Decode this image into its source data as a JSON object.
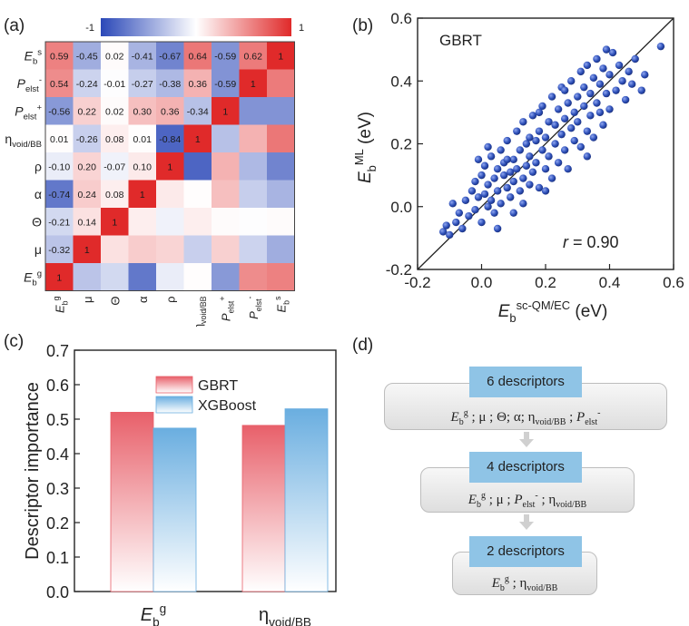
{
  "panels": {
    "a": "(a)",
    "b": "(b)",
    "c": "(c)",
    "d": "(d)"
  },
  "chart_data": [
    {
      "type": "heatmap",
      "colorbar": {
        "min_label": "-1",
        "max_label": "1",
        "min": -1,
        "max": 1,
        "colors": {
          "neg": "#2b48b8",
          "mid": "#ffffff",
          "pos": "#e02a2a"
        }
      },
      "rows": [
        "Eb^s",
        "P_elst^-",
        "P_elst^+",
        "η_void/BB",
        "ρ",
        "α",
        "Θ",
        "μ",
        "Eb^g"
      ],
      "cols": [
        "Eb^g",
        "μ",
        "Θ",
        "α",
        "ρ",
        "η_void/BB",
        "P_elst^+",
        "P_elst^-",
        "Eb^s"
      ],
      "matrix": [
        [
          0.59,
          -0.45,
          0.02,
          -0.41,
          -0.67,
          0.64,
          -0.59,
          0.62,
          1
        ],
        [
          0.54,
          -0.24,
          -0.01,
          -0.27,
          -0.38,
          0.36,
          -0.59,
          1,
          0.62
        ],
        [
          -0.56,
          0.22,
          0.02,
          0.3,
          0.36,
          -0.34,
          1,
          -0.59,
          -0.59
        ],
        [
          0.01,
          -0.26,
          0.08,
          0.01,
          -0.84,
          1,
          -0.34,
          0.36,
          0.64
        ],
        [
          -0.1,
          0.2,
          -0.07,
          0.1,
          1,
          -0.84,
          0.36,
          -0.38,
          -0.67
        ],
        [
          -0.74,
          0.24,
          0.08,
          1,
          0.1,
          0.01,
          0.3,
          -0.27,
          -0.41
        ],
        [
          -0.21,
          0.14,
          1,
          0.08,
          -0.07,
          0.08,
          0.02,
          -0.01,
          0.02
        ],
        [
          -0.32,
          1,
          0.14,
          0.24,
          0.2,
          -0.26,
          0.22,
          -0.24,
          -0.45
        ],
        [
          1,
          -0.32,
          -0.21,
          -0.74,
          -0.1,
          0.01,
          -0.56,
          0.54,
          0.59
        ]
      ],
      "labels": [
        "0.59",
        "-0.45",
        "0.02",
        "-0.41",
        "-0.67",
        "0.64",
        "-0.59",
        "0.62",
        "1",
        "0.54",
        "-0.24",
        "-0.01",
        "-0.27",
        "-0.38",
        "0.36",
        "-0.59",
        "1",
        "-0.56",
        "0.22",
        "0.02",
        "0.30",
        "0.36",
        "-0.34",
        "1",
        "0.01",
        "-0.26",
        "0.08",
        "0.01",
        "-0.84",
        "1",
        "-0.10",
        "0.20",
        "-0.07",
        "0.10",
        "1",
        "-0.74",
        "0.24",
        "0.08",
        "1",
        "-0.21",
        "0.14",
        "1",
        "-0.32",
        "1",
        "1"
      ]
    },
    {
      "type": "scatter",
      "title": "GBRT",
      "xlabel": "E_b^sc-QM/EC (eV)",
      "ylabel": "E_b^ML (eV)",
      "xlim": [
        -0.2,
        0.6
      ],
      "ylim": [
        -0.2,
        0.6
      ],
      "xticks": [
        "-0.2",
        "0.0",
        "0.2",
        "0.4",
        "0.6"
      ],
      "yticks": [
        "-0.2",
        "0.0",
        "0.2",
        "0.4",
        "0.6"
      ],
      "annotation": "r = 0.90",
      "point_color": "#2d4fb8",
      "points": [
        [
          -0.12,
          -0.08
        ],
        [
          -0.11,
          -0.06
        ],
        [
          -0.1,
          -0.09
        ],
        [
          -0.08,
          -0.05
        ],
        [
          -0.09,
          0.01
        ],
        [
          -0.07,
          -0.02
        ],
        [
          -0.06,
          -0.07
        ],
        [
          -0.05,
          0.02
        ],
        [
          -0.04,
          -0.03
        ],
        [
          -0.03,
          0.05
        ],
        [
          -0.02,
          -0.01
        ],
        [
          -0.02,
          0.08
        ],
        [
          -0.01,
          0.03
        ],
        [
          0.0,
          -0.05
        ],
        [
          0.0,
          0.1
        ],
        [
          0.01,
          0.04
        ],
        [
          0.01,
          0.13
        ],
        [
          0.02,
          0.0
        ],
        [
          0.02,
          0.07
        ],
        [
          0.03,
          0.16
        ],
        [
          0.03,
          0.02
        ],
        [
          0.04,
          0.09
        ],
        [
          0.04,
          -0.02
        ],
        [
          0.05,
          0.12
        ],
        [
          0.05,
          0.05
        ],
        [
          0.06,
          0.18
        ],
        [
          0.06,
          0.01
        ],
        [
          0.07,
          0.1
        ],
        [
          0.07,
          0.14
        ],
        [
          0.08,
          0.06
        ],
        [
          0.08,
          0.21
        ],
        [
          0.09,
          0.11
        ],
        [
          0.09,
          0.03
        ],
        [
          0.1,
          0.15
        ],
        [
          0.1,
          0.08
        ],
        [
          0.11,
          0.24
        ],
        [
          0.11,
          0.12
        ],
        [
          0.12,
          0.05
        ],
        [
          0.12,
          0.18
        ],
        [
          0.13,
          0.09
        ],
        [
          0.13,
          0.27
        ],
        [
          0.14,
          0.13
        ],
        [
          0.14,
          0.2
        ],
        [
          0.15,
          0.07
        ],
        [
          0.15,
          0.16
        ],
        [
          0.16,
          0.29
        ],
        [
          0.16,
          0.11
        ],
        [
          0.17,
          0.21
        ],
        [
          0.17,
          0.14
        ],
        [
          0.18,
          0.24
        ],
        [
          0.18,
          0.06
        ],
        [
          0.19,
          0.18
        ],
        [
          0.19,
          0.32
        ],
        [
          0.2,
          0.12
        ],
        [
          0.2,
          0.22
        ],
        [
          0.21,
          0.27
        ],
        [
          0.21,
          0.16
        ],
        [
          0.22,
          0.35
        ],
        [
          0.22,
          0.09
        ],
        [
          0.23,
          0.2
        ],
        [
          0.23,
          0.26
        ],
        [
          0.24,
          0.14
        ],
        [
          0.24,
          0.31
        ],
        [
          0.25,
          0.23
        ],
        [
          0.25,
          0.38
        ],
        [
          0.26,
          0.18
        ],
        [
          0.26,
          0.28
        ],
        [
          0.27,
          0.33
        ],
        [
          0.27,
          0.12
        ],
        [
          0.28,
          0.25
        ],
        [
          0.28,
          0.4
        ],
        [
          0.29,
          0.3
        ],
        [
          0.29,
          0.21
        ],
        [
          0.3,
          0.35
        ],
        [
          0.3,
          0.27
        ],
        [
          0.31,
          0.43
        ],
        [
          0.31,
          0.19
        ],
        [
          0.32,
          0.32
        ],
        [
          0.32,
          0.38
        ],
        [
          0.33,
          0.24
        ],
        [
          0.33,
          0.45
        ],
        [
          0.34,
          0.29
        ],
        [
          0.34,
          0.36
        ],
        [
          0.35,
          0.41
        ],
        [
          0.35,
          0.22
        ],
        [
          0.36,
          0.33
        ],
        [
          0.36,
          0.47
        ],
        [
          0.37,
          0.3
        ],
        [
          0.37,
          0.39
        ],
        [
          0.38,
          0.44
        ],
        [
          0.38,
          0.26
        ],
        [
          0.39,
          0.36
        ],
        [
          0.4,
          0.42
        ],
        [
          0.4,
          0.31
        ],
        [
          0.41,
          0.49
        ],
        [
          0.42,
          0.37
        ],
        [
          0.43,
          0.45
        ],
        [
          0.44,
          0.4
        ],
        [
          0.45,
          0.34
        ],
        [
          0.46,
          0.43
        ],
        [
          0.47,
          0.39
        ],
        [
          0.48,
          0.47
        ],
        [
          0.5,
          0.37
        ],
        [
          0.51,
          0.42
        ],
        [
          0.56,
          0.51
        ],
        [
          -0.01,
          0.15
        ],
        [
          0.05,
          -0.07
        ],
        [
          0.08,
          0.15
        ],
        [
          0.13,
          0.01
        ],
        [
          0.18,
          0.3
        ],
        [
          0.02,
          0.19
        ],
        [
          0.1,
          -0.02
        ],
        [
          0.15,
          0.22
        ],
        [
          0.2,
          0.05
        ],
        [
          0.26,
          0.37
        ],
        [
          0.33,
          0.16
        ],
        [
          0.39,
          0.5
        ]
      ]
    },
    {
      "type": "bar",
      "categories": [
        "E_b^g",
        "η_void/BB"
      ],
      "series": [
        {
          "name": "GBRT",
          "values": [
            0.52,
            0.482
          ],
          "color": "#e8606a"
        },
        {
          "name": "XGBoost",
          "values": [
            0.474,
            0.53
          ],
          "color": "#6aaee0"
        }
      ],
      "ylabel": "Descriptor importance",
      "ylim": [
        0.0,
        0.7
      ],
      "yticks": [
        "0.0",
        "0.1",
        "0.2",
        "0.3",
        "0.4",
        "0.5",
        "0.6",
        "0.7"
      ],
      "legend_position": "top-center"
    }
  ],
  "flow": {
    "steps": [
      {
        "head": "6 descriptors"
      },
      {
        "head": "4 descriptors"
      },
      {
        "head": "2 descriptors"
      }
    ]
  }
}
